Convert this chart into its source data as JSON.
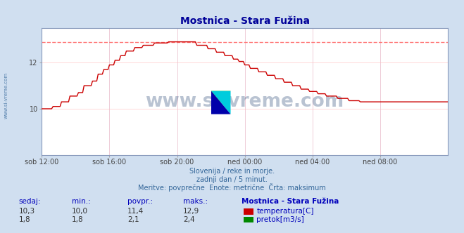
{
  "title": "Mostnica - Stara Fužina",
  "title_color": "#000099",
  "bg_color": "#d0dff0",
  "plot_bg_color": "#ffffff",
  "grid_color": "#ffbbbb",
  "grid_color_v": "#ccddff",
  "x_tick_labels": [
    "sob 12:00",
    "sob 16:00",
    "sob 20:00",
    "ned 00:00",
    "ned 04:00",
    "ned 08:00"
  ],
  "x_tick_positions": [
    0,
    48,
    96,
    144,
    192,
    240
  ],
  "n_points": 289,
  "temp_color": "#cc0000",
  "flow_color": "#008800",
  "height_color": "#0000cc",
  "max_temp_line_color": "#ff7777",
  "max_flow_line_color": "#44bb44",
  "ylim": [
    8.0,
    13.5
  ],
  "y_ticks": [
    10,
    12
  ],
  "footer_line1": "Slovenija / reke in morje.",
  "footer_line2": "zadnji dan / 5 minut.",
  "footer_line3": "Meritve: povprečne  Enote: metrične  Črta: maksimum",
  "footer_color": "#336699",
  "table_header": [
    "sedaj:",
    "min.:",
    "povpr.:",
    "maks.:",
    "Mostnica - Stara Fužina"
  ],
  "table_row1": [
    "10,3",
    "10,0",
    "11,4",
    "12,9"
  ],
  "table_row2": [
    "1,8",
    "1,8",
    "2,1",
    "2,4"
  ],
  "label_temp": "temperatura[C]",
  "label_flow": "pretok[m3/s]",
  "watermark_text": "www.si-vreme.com",
  "watermark_color": "#1a3a6a",
  "left_label": "www.si-vreme.com",
  "left_label_color": "#336699",
  "temp_max_val": 12.9,
  "flow_max_val": 2.4,
  "temp_min_val": 10.0,
  "flow_min_val": 1.8
}
